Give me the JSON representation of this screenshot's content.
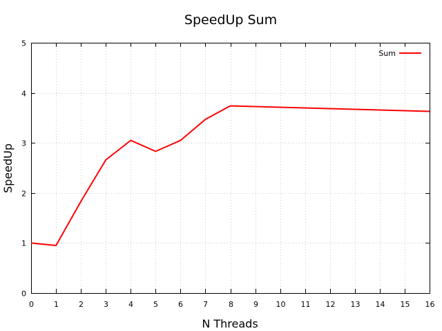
{
  "chart_data": {
    "type": "line",
    "title": "SpeedUp Sum",
    "xlabel": "N Threads",
    "ylabel": "SpeedUp",
    "xlim": [
      0,
      16
    ],
    "ylim": [
      0,
      5
    ],
    "xticks": [
      0,
      1,
      2,
      3,
      4,
      5,
      6,
      7,
      8,
      9,
      10,
      11,
      12,
      13,
      14,
      15,
      16
    ],
    "yticks": [
      0,
      1,
      2,
      3,
      4,
      5
    ],
    "grid": true,
    "legend_position": "top-right",
    "series": [
      {
        "name": "Sum",
        "color": "#ff0000",
        "x": [
          0,
          1,
          2,
          3,
          4,
          5,
          6,
          7,
          8,
          16
        ],
        "y": [
          1.0,
          0.95,
          1.83,
          2.66,
          3.05,
          2.83,
          3.05,
          3.47,
          3.74,
          3.63
        ]
      }
    ]
  }
}
